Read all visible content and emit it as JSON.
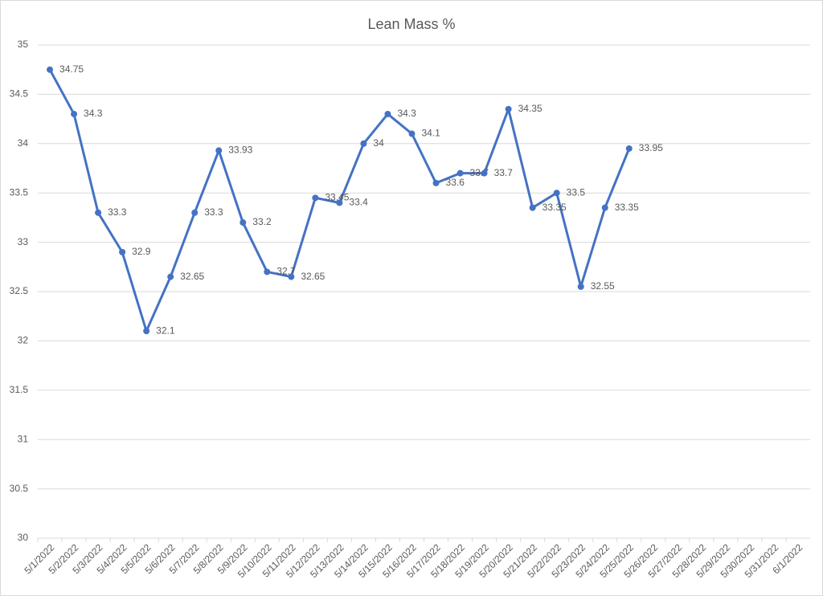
{
  "chart_data": {
    "type": "line",
    "title": "Lean Mass %",
    "categories": [
      "5/1/2022",
      "5/2/2022",
      "5/3/2022",
      "5/4/2022",
      "5/5/2022",
      "5/6/2022",
      "5/7/2022",
      "5/8/2022",
      "5/9/2022",
      "5/10/2022",
      "5/11/2022",
      "5/12/2022",
      "5/13/2022",
      "5/14/2022",
      "5/15/2022",
      "5/16/2022",
      "5/17/2022",
      "5/18/2022",
      "5/19/2022",
      "5/20/2022",
      "5/21/2022",
      "5/22/2022",
      "5/23/2022",
      "5/24/2022",
      "5/25/2022",
      "5/26/2022",
      "5/27/2022",
      "5/28/2022",
      "5/29/2022",
      "5/30/2022",
      "5/31/2022",
      "6/1/2022"
    ],
    "values": [
      34.75,
      34.3,
      33.3,
      32.9,
      32.1,
      32.65,
      33.3,
      33.93,
      33.2,
      32.7,
      32.65,
      33.45,
      33.4,
      34,
      34.3,
      34.1,
      33.6,
      33.7,
      33.7,
      34.35,
      33.35,
      33.5,
      32.55,
      33.35,
      33.95,
      null,
      null,
      null,
      null,
      null,
      null,
      null
    ],
    "color": "#4472c4",
    "ylim": [
      30,
      35
    ],
    "yticks": [
      30,
      30.5,
      31,
      31.5,
      32,
      32.5,
      33,
      33.5,
      34,
      34.5,
      35
    ],
    "grid": true
  }
}
